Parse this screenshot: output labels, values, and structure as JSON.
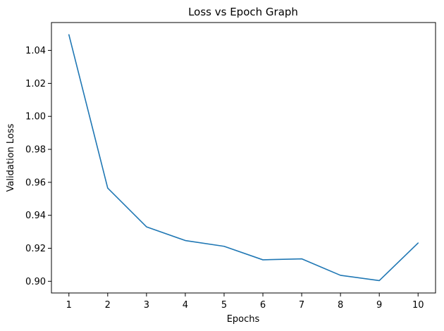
{
  "chart_data": {
    "type": "line",
    "title": "Loss vs Epoch Graph",
    "xlabel": "Epochs",
    "ylabel": "Validation Loss",
    "x": [
      1,
      2,
      3,
      4,
      5,
      6,
      7,
      8,
      9,
      10
    ],
    "series": [
      {
        "values": [
          1.0495,
          0.9565,
          0.933,
          0.9247,
          0.9212,
          0.913,
          0.9136,
          0.9036,
          0.9004,
          0.9232
        ],
        "color": "#1f77b4"
      }
    ],
    "xticks": [
      "1",
      "2",
      "3",
      "4",
      "5",
      "6",
      "7",
      "8",
      "9",
      "10"
    ],
    "yticks": [
      "0.90",
      "0.92",
      "0.94",
      "0.96",
      "0.98",
      "1.00",
      "1.02",
      "1.04"
    ],
    "xlim": [
      0.55,
      10.45
    ],
    "ylim": [
      0.8929,
      1.0569
    ],
    "grid": false,
    "legend": false
  }
}
